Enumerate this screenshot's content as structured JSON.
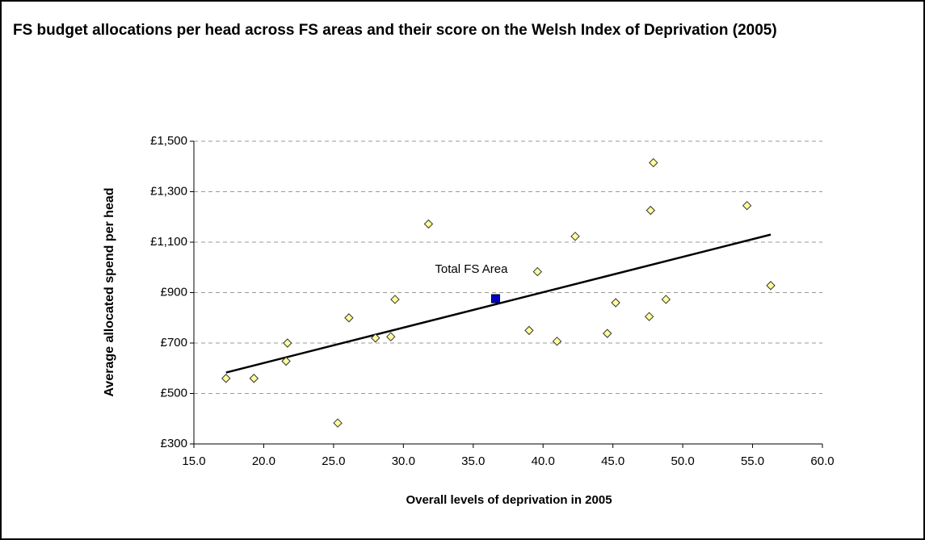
{
  "chart_data": {
    "type": "scatter",
    "title": "FS budget allocations per head across FS areas and their score on the Welsh Index of Deprivation (2005)",
    "xlabel": "Overall levels of deprivation in 2005",
    "ylabel": "Average allocated spend per head",
    "x": [
      17.3,
      19.3,
      21.6,
      21.7,
      25.3,
      26.1,
      28.0,
      29.1,
      29.4,
      31.8,
      39.0,
      39.6,
      41.0,
      42.3,
      44.6,
      45.2,
      47.6,
      47.7,
      47.9,
      48.8,
      54.6,
      56.3
    ],
    "values": [
      560,
      560,
      628,
      700,
      383,
      800,
      720,
      725,
      873,
      1172,
      750,
      983,
      707,
      1123,
      738,
      860,
      805,
      1226,
      1415,
      873,
      1245,
      928
    ],
    "color": "#ffff99",
    "highlight": {
      "label": "Total FS Area",
      "x": 36.6,
      "value": 876,
      "color": "#0000cc"
    },
    "trendline": {
      "x": [
        17.3,
        56.3
      ],
      "values": [
        583,
        1130
      ]
    },
    "xlim": [
      15,
      60
    ],
    "xticks": [
      {
        "value": 15,
        "label": "15.0"
      },
      {
        "value": 20,
        "label": "20.0"
      },
      {
        "value": 25,
        "label": "25.0"
      },
      {
        "value": 30,
        "label": "30.0"
      },
      {
        "value": 35,
        "label": "35.0"
      },
      {
        "value": 40,
        "label": "40.0"
      },
      {
        "value": 45,
        "label": "45.0"
      },
      {
        "value": 50,
        "label": "50.0"
      },
      {
        "value": 55,
        "label": "55.0"
      },
      {
        "value": 60,
        "label": "60.0"
      }
    ],
    "ylim": [
      300,
      1500
    ],
    "yticks": [
      {
        "value": 300,
        "label": "£300"
      },
      {
        "value": 500,
        "label": "£500"
      },
      {
        "value": 700,
        "label": "£700"
      },
      {
        "value": 900,
        "label": "£900"
      },
      {
        "value": 1100,
        "label": "£1,100"
      },
      {
        "value": 1300,
        "label": "£1,300"
      },
      {
        "value": 1500,
        "label": "£1,500"
      }
    ],
    "grid": true
  }
}
